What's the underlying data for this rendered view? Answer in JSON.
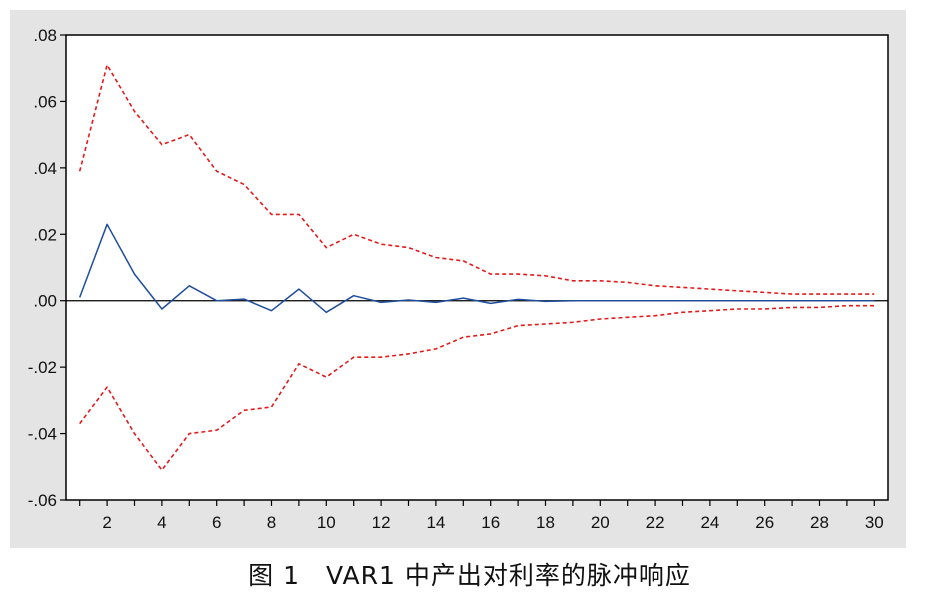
{
  "caption": "图 1　VAR1 中产出对利率的脉冲响应",
  "chart_data": {
    "type": "line",
    "title": "",
    "xlabel": "",
    "ylabel": "",
    "xlim": [
      0.5,
      30.5
    ],
    "ylim": [
      -0.06,
      0.08
    ],
    "x_ticks": [
      2,
      4,
      6,
      8,
      10,
      12,
      14,
      16,
      18,
      20,
      22,
      24,
      26,
      28,
      30
    ],
    "x_tick_labels": [
      "2",
      "4",
      "6",
      "8",
      "10",
      "12",
      "14",
      "16",
      "18",
      "20",
      "22",
      "24",
      "26",
      "28",
      "30"
    ],
    "y_ticks": [
      -0.06,
      -0.04,
      -0.02,
      0.0,
      0.02,
      0.04,
      0.06,
      0.08
    ],
    "y_tick_labels": [
      "-.06",
      "-.04",
      "-.02",
      ".00",
      ".02",
      ".04",
      ".06",
      ".08"
    ],
    "zero_line": true,
    "grid": false,
    "legend": "none",
    "x": [
      1,
      2,
      3,
      4,
      5,
      6,
      7,
      8,
      9,
      10,
      11,
      12,
      13,
      14,
      15,
      16,
      17,
      18,
      19,
      20,
      21,
      22,
      23,
      24,
      25,
      26,
      27,
      28,
      29,
      30
    ],
    "series": [
      {
        "color": "#1f4e9c",
        "style": "solid",
        "values": [
          0.001,
          0.023,
          0.008,
          -0.0025,
          0.0045,
          0.0,
          0.0005,
          -0.003,
          0.0035,
          -0.0035,
          0.0015,
          -0.0005,
          0.0002,
          -0.0005,
          0.0008,
          -0.0008,
          0.0004,
          -0.0002,
          0.0,
          0.0,
          0.0,
          0.0,
          0.0,
          0.0,
          0.0,
          0.0,
          0.0,
          0.0,
          0.0,
          0.0
        ]
      },
      {
        "color": "#e31a1c",
        "style": "dashed",
        "values": [
          0.039,
          0.071,
          0.057,
          0.047,
          0.05,
          0.039,
          0.035,
          0.026,
          0.026,
          0.016,
          0.02,
          0.017,
          0.016,
          0.013,
          0.012,
          0.008,
          0.008,
          0.0075,
          0.006,
          0.006,
          0.0055,
          0.0045,
          0.004,
          0.0035,
          0.003,
          0.0025,
          0.002,
          0.002,
          0.002,
          0.002
        ]
      },
      {
        "color": "#e31a1c",
        "style": "dashed",
        "values": [
          -0.037,
          -0.026,
          -0.04,
          -0.051,
          -0.04,
          -0.039,
          -0.033,
          -0.032,
          -0.019,
          -0.023,
          -0.017,
          -0.017,
          -0.016,
          -0.0145,
          -0.011,
          -0.01,
          -0.0075,
          -0.007,
          -0.0065,
          -0.0055,
          -0.005,
          -0.0045,
          -0.0035,
          -0.003,
          -0.0025,
          -0.0025,
          -0.002,
          -0.002,
          -0.0015,
          -0.0015
        ]
      }
    ]
  }
}
